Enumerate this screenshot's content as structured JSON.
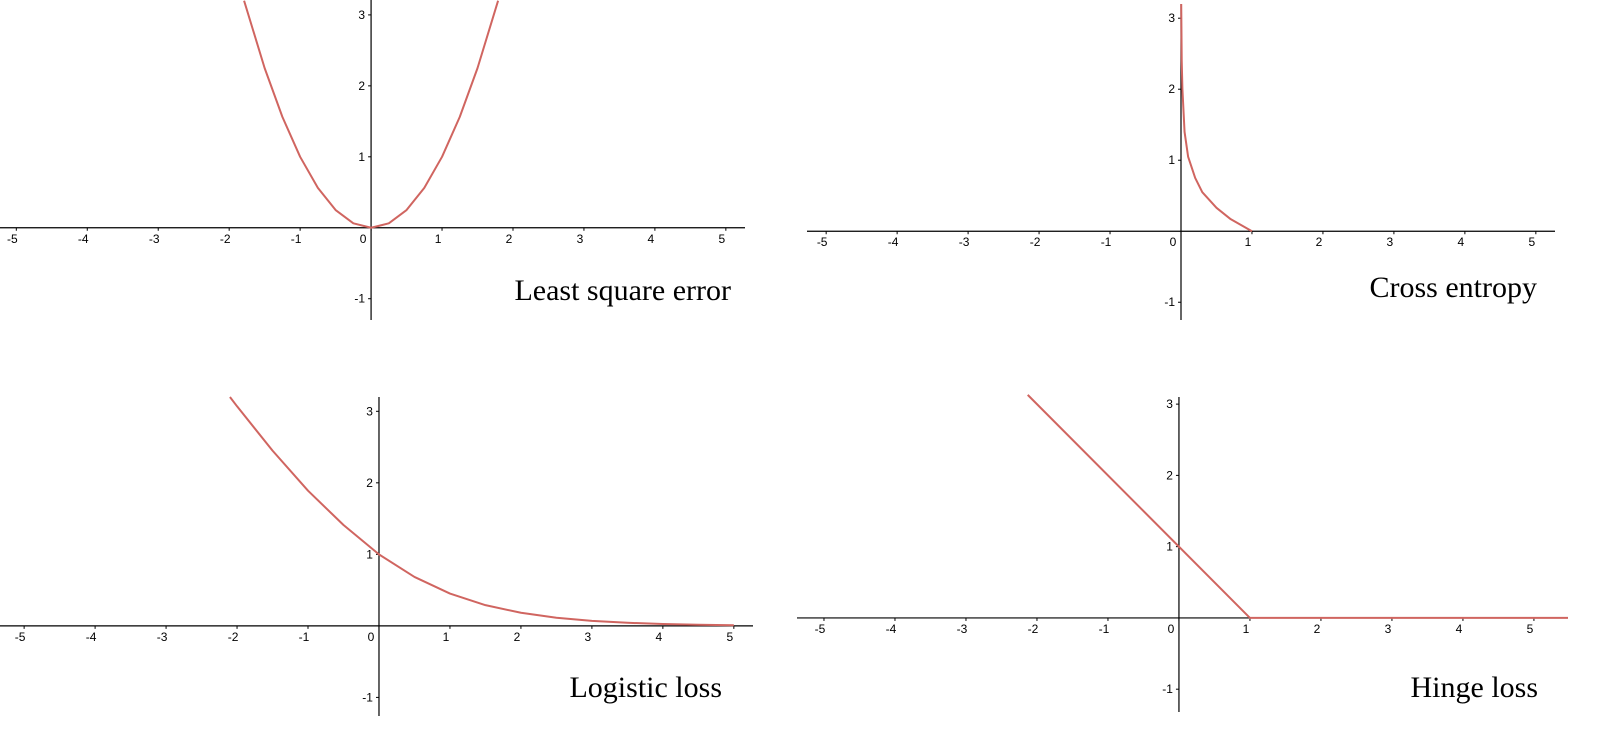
{
  "chart_data": [
    {
      "type": "line",
      "title": "Least square error",
      "color": "#d06560",
      "x": [
        -1.79,
        -1.5,
        -1.25,
        -1,
        -0.75,
        -0.5,
        -0.25,
        0,
        0.25,
        0.5,
        0.75,
        1,
        1.25,
        1.5,
        1.79
      ],
      "values": [
        3.2,
        2.25,
        1.5625,
        1,
        0.5625,
        0.25,
        0.0625,
        0,
        0.0625,
        0.25,
        0.5625,
        1,
        1.5625,
        2.25,
        3.2
      ],
      "xlim": [
        -5.23,
        5.27
      ],
      "ylim": [
        -1.3,
        3.21
      ],
      "xticks": [
        -5,
        -4,
        -3,
        -2,
        -1,
        0,
        1,
        2,
        3,
        4,
        5
      ],
      "yticks": [
        -1,
        1,
        2,
        3
      ]
    },
    {
      "type": "line",
      "title": "Cross entropy",
      "color": "#d06560",
      "x": [
        0.003,
        0.01,
        0.02,
        0.05,
        0.1,
        0.2,
        0.3,
        0.5,
        0.7,
        1
      ],
      "values": [
        3.2,
        2.4,
        2.0,
        1.4,
        1.05,
        0.75,
        0.55,
        0.33,
        0.17,
        0
      ],
      "xlim": [
        -5.27,
        5.27
      ],
      "ylim": [
        -1.25,
        3.2
      ],
      "xticks": [
        -5,
        -4,
        -3,
        -2,
        -1,
        0,
        1,
        2,
        3,
        4,
        5
      ],
      "yticks": [
        -1,
        1,
        2,
        3
      ]
    },
    {
      "type": "line",
      "title": "Logistic loss",
      "color": "#d06560",
      "x": [
        -2.1,
        -2,
        -1.5,
        -1,
        -0.5,
        0,
        0.5,
        1,
        1.5,
        2,
        2.5,
        3,
        3.5,
        4,
        4.5,
        5
      ],
      "values": [
        3.2,
        3.07,
        2.45,
        1.89,
        1.41,
        1,
        0.684,
        0.452,
        0.29,
        0.183,
        0.114,
        0.07,
        0.043,
        0.0262,
        0.0159,
        0.0097
      ],
      "xlim": [
        -5.34,
        5.27
      ],
      "ylim": [
        -1.26,
        3.2
      ],
      "xticks": [
        -5,
        -4,
        -3,
        -2,
        -1,
        0,
        1,
        2,
        3,
        4,
        5
      ],
      "yticks": [
        -1,
        1,
        2,
        3
      ]
    },
    {
      "type": "line",
      "title": "Hinge loss",
      "color": "#d06560",
      "x": [
        -2.13,
        1,
        5.48
      ],
      "values": [
        3.13,
        0,
        0
      ],
      "xlim": [
        -5.38,
        5.48
      ],
      "ylim": [
        -1.32,
        3.1
      ],
      "xticks": [
        -5,
        -4,
        -3,
        -2,
        -1,
        0,
        1,
        2,
        3,
        4,
        5
      ],
      "yticks": [
        -1,
        1,
        2,
        3
      ]
    }
  ]
}
